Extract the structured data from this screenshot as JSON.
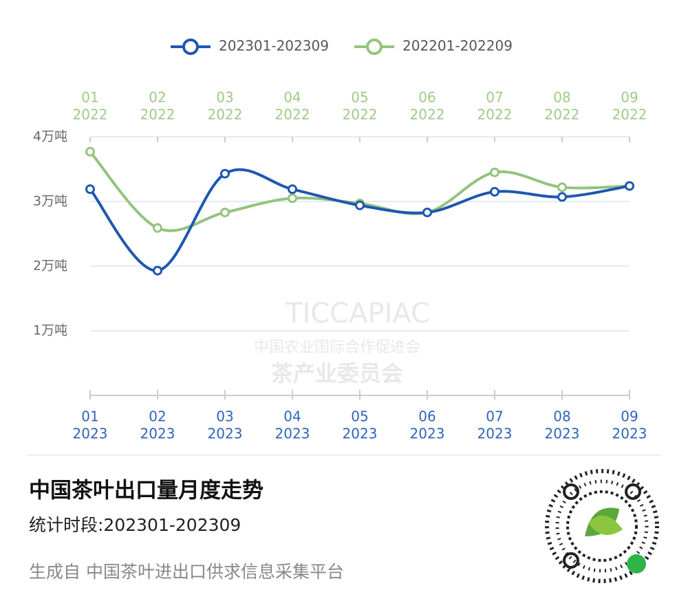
{
  "chart_data": {
    "type": "line",
    "legend": [
      "202301-202309",
      "202201-202209"
    ],
    "categories": [
      [
        "01",
        "2023"
      ],
      [
        "02",
        "2023"
      ],
      [
        "03",
        "2023"
      ],
      [
        "04",
        "2023"
      ],
      [
        "05",
        "2023"
      ],
      [
        "06",
        "2023"
      ],
      [
        "07",
        "2023"
      ],
      [
        "08",
        "2023"
      ],
      [
        "09",
        "2023"
      ]
    ],
    "categories_top": [
      [
        "01",
        "2022"
      ],
      [
        "02",
        "2022"
      ],
      [
        "03",
        "2022"
      ],
      [
        "04",
        "2022"
      ],
      [
        "05",
        "2022"
      ],
      [
        "06",
        "2022"
      ],
      [
        "07",
        "2022"
      ],
      [
        "08",
        "2022"
      ],
      [
        "09",
        "2022"
      ]
    ],
    "series": [
      {
        "name": "202301-202309",
        "color": "#1f57b0",
        "values": [
          3.19,
          1.93,
          3.43,
          3.19,
          2.94,
          2.83,
          3.15,
          3.07,
          3.24
        ]
      },
      {
        "name": "202201-202209",
        "color": "#93c47d",
        "values": [
          3.77,
          2.59,
          2.83,
          3.05,
          2.97,
          2.83,
          3.45,
          3.22,
          3.24
        ]
      }
    ],
    "ylim": [
      0,
      4
    ],
    "yticks": [
      {
        "value": 1,
        "label": "1万吨"
      },
      {
        "value": 2,
        "label": "2万吨"
      },
      {
        "value": 3,
        "label": "3万吨"
      },
      {
        "value": 4,
        "label": "4万吨"
      }
    ],
    "grid": true,
    "watermark": [
      "TICCAPIAC",
      "中国农业国际合作促进会",
      "茶产业委员会"
    ]
  },
  "footer": {
    "title": "中国茶叶出口量月度走势",
    "subtitle": "统计时段:202301-202309",
    "source": "生成自 中国茶叶进出口供求信息采集平台"
  }
}
